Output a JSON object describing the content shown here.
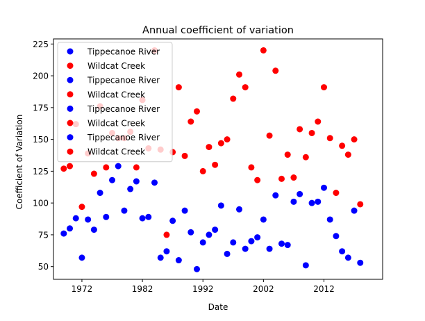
{
  "chart_data": {
    "type": "scatter",
    "title": "Annual coefficient of variation",
    "xlabel": "Date",
    "ylabel": "Coefficient of Variation",
    "x_ticks": [
      1972,
      1982,
      1992,
      2002,
      2012
    ],
    "y_ticks": [
      50,
      75,
      100,
      125,
      150,
      175,
      200,
      225
    ],
    "xlim": [
      1967.3,
      2021.7
    ],
    "ylim": [
      40,
      229
    ],
    "grid": false,
    "legend_position": "top-left",
    "legend": [
      {
        "label": "Tippecanoe River",
        "color": "#0000ff"
      },
      {
        "label": "Wildcat Creek",
        "color": "#ff0000"
      },
      {
        "label": "Tippecanoe River",
        "color": "#0000ff"
      },
      {
        "label": "Wildcat Creek",
        "color": "#ff0000"
      },
      {
        "label": "Tippecanoe River",
        "color": "#0000ff"
      },
      {
        "label": "Wildcat Creek",
        "color": "#ff0000"
      },
      {
        "label": "Tippecanoe River",
        "color": "#0000ff"
      },
      {
        "label": "Wildcat Creek",
        "color": "#ff0000"
      }
    ],
    "series": [
      {
        "name": "Tippecanoe River",
        "color": "#0000ff",
        "x": [
          1969,
          1970,
          1971,
          1972,
          1973,
          1974,
          1975,
          1976,
          1977,
          1978,
          1979,
          1980,
          1981,
          1982,
          1983,
          1984,
          1985,
          1986,
          1987,
          1988,
          1989,
          1990,
          1991,
          1992,
          1993,
          1994,
          1995,
          1996,
          1997,
          1998,
          1999,
          2000,
          2001,
          2002,
          2003,
          2004,
          2005,
          2006,
          2007,
          2008,
          2009,
          2010,
          2011,
          2012,
          2013,
          2014,
          2015,
          2016,
          2017,
          2018,
          2019
        ],
        "y": [
          76,
          80,
          88,
          57,
          87,
          79,
          108,
          89,
          118,
          129,
          94,
          111,
          117,
          88,
          89,
          116,
          57,
          62,
          86,
          55,
          94,
          77,
          48,
          69,
          75,
          79,
          98,
          60,
          69,
          95,
          64,
          70,
          73,
          87,
          64,
          106,
          68,
          67,
          101,
          107,
          51,
          100,
          101,
          112,
          87,
          74,
          62,
          57,
          94,
          53,
          null
        ]
      },
      {
        "name": "Wildcat Creek",
        "color": "#ff0000",
        "x": [
          1969,
          1970,
          1971,
          1972,
          1973,
          1974,
          1975,
          1976,
          1977,
          1978,
          1979,
          1980,
          1981,
          1982,
          1983,
          1984,
          1985,
          1986,
          1987,
          1988,
          1989,
          1990,
          1991,
          1992,
          1993,
          1994,
          1995,
          1996,
          1997,
          1998,
          1999,
          2000,
          2001,
          2002,
          2003,
          2004,
          2005,
          2006,
          2007,
          2008,
          2009,
          2010,
          2011,
          2012,
          2013,
          2014,
          2015,
          2016,
          2017,
          2018,
          2019
        ],
        "y": [
          127,
          129,
          162,
          97,
          139,
          123,
          176,
          128,
          155,
          151,
          151,
          156,
          128,
          181,
          143,
          220,
          142,
          75,
          140,
          191,
          137,
          164,
          172,
          125,
          144,
          130,
          147,
          150,
          182,
          201,
          191,
          128,
          118,
          220,
          153,
          204,
          119,
          138,
          120,
          158,
          136,
          155,
          164,
          191,
          151,
          108,
          145,
          138,
          150,
          99,
          null
        ]
      }
    ]
  }
}
